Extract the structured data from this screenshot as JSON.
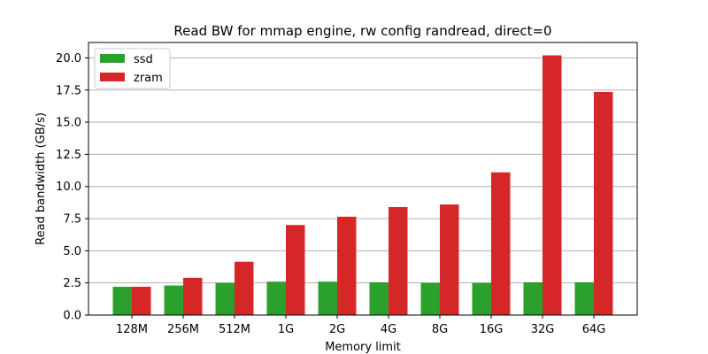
{
  "chart_data": {
    "type": "bar",
    "title": "Read BW for mmap engine, rw config randread, direct=0",
    "xlabel": "Memory limit",
    "ylabel": "Read bandwidth (GB/s)",
    "categories": [
      "128M",
      "256M",
      "512M",
      "1G",
      "2G",
      "4G",
      "8G",
      "16G",
      "32G",
      "64G"
    ],
    "series": [
      {
        "name": "ssd",
        "color": "#2ca02c",
        "values": [
          2.2,
          2.3,
          2.5,
          2.6,
          2.6,
          2.55,
          2.5,
          2.5,
          2.55,
          2.55
        ]
      },
      {
        "name": "zram",
        "color": "#d62728",
        "values": [
          2.2,
          2.9,
          4.15,
          7.0,
          7.65,
          8.4,
          8.6,
          11.1,
          20.2,
          17.35
        ]
      }
    ],
    "ylim": [
      0,
      21.2
    ],
    "yticks": [
      0.0,
      2.5,
      5.0,
      7.5,
      10.0,
      12.5,
      15.0,
      17.5,
      20.0
    ],
    "ytick_labels": [
      "0.0",
      "2.5",
      "5.0",
      "7.5",
      "10.0",
      "12.5",
      "15.0",
      "17.5",
      "20.0"
    ],
    "grid": "y",
    "legend_position": "top-left"
  }
}
